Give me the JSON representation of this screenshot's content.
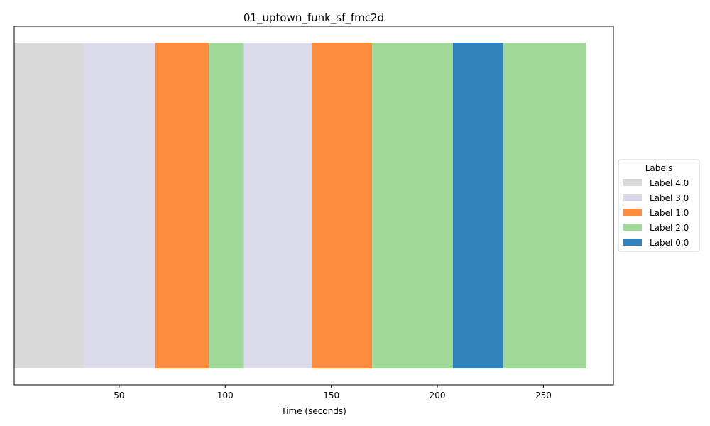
{
  "chart_data": {
    "type": "bar",
    "orientation": "horizontal-timeline",
    "title": "01_uptown_funk_sf_fmc2d",
    "xlabel": "Time (seconds)",
    "ylabel": "",
    "xlim": [
      0.5,
      283
    ],
    "x_ticks": [
      50,
      100,
      150,
      200,
      250
    ],
    "grid": false,
    "legend": {
      "title": "Labels",
      "placement": "right-center",
      "entries": [
        {
          "label": "Label 4.0",
          "color": "#d9d9d9"
        },
        {
          "label": "Label 3.0",
          "color": "#dadaeb"
        },
        {
          "label": "Label 1.0",
          "color": "#fd8d3c"
        },
        {
          "label": "Label 2.0",
          "color": "#a1d99b"
        },
        {
          "label": "Label 0.0",
          "color": "#3182bd"
        }
      ]
    },
    "segments": [
      {
        "start": 0.5,
        "end": 33.5,
        "label": "Label 4.0"
      },
      {
        "start": 33.5,
        "end": 67.0,
        "label": "Label 3.0"
      },
      {
        "start": 67.0,
        "end": 92.3,
        "label": "Label 1.0"
      },
      {
        "start": 92.3,
        "end": 108.5,
        "label": "Label 2.0"
      },
      {
        "start": 108.5,
        "end": 141.0,
        "label": "Label 3.0"
      },
      {
        "start": 141.0,
        "end": 169.3,
        "label": "Label 1.0"
      },
      {
        "start": 169.3,
        "end": 207.3,
        "label": "Label 2.0"
      },
      {
        "start": 207.3,
        "end": 231.0,
        "label": "Label 0.0"
      },
      {
        "start": 231.0,
        "end": 270.0,
        "label": "Label 2.0"
      }
    ]
  }
}
